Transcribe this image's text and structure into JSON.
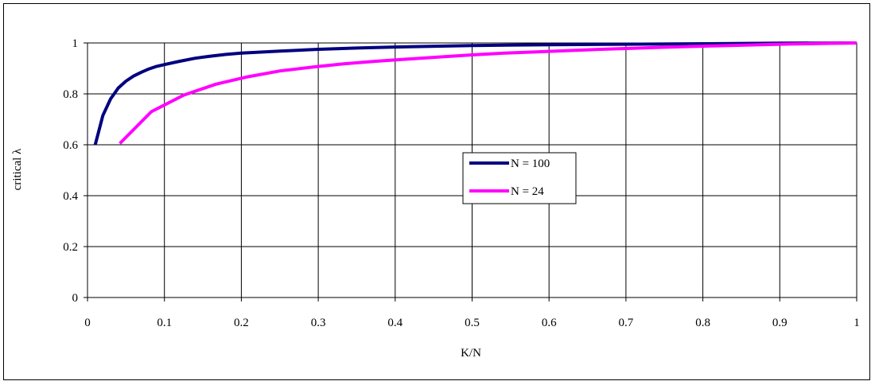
{
  "chart_data": {
    "type": "line",
    "xlabel": "K/N",
    "ylabel": "critical λ",
    "xlim": [
      0,
      1
    ],
    "ylim": [
      0,
      1
    ],
    "x_ticks": [
      "0",
      "0.1",
      "0.2",
      "0.3",
      "0.4",
      "0.5",
      "0.6",
      "0.7",
      "0.8",
      "0.9",
      "1"
    ],
    "y_ticks": [
      "0",
      "0.2",
      "0.4",
      "0.6",
      "0.8",
      "1"
    ],
    "grid": true,
    "legend_position": "center",
    "series": [
      {
        "name": "N = 100",
        "color": "#000080",
        "x": [
          0.01,
          0.02,
          0.03,
          0.04,
          0.05,
          0.06,
          0.07,
          0.08,
          0.09,
          0.1,
          0.12,
          0.14,
          0.16,
          0.18,
          0.2,
          0.25,
          0.3,
          0.35,
          0.4,
          0.5,
          0.6,
          0.7,
          0.8,
          0.9,
          1.0
        ],
        "y": [
          0.6,
          0.715,
          0.78,
          0.823,
          0.85,
          0.87,
          0.885,
          0.898,
          0.908,
          0.915,
          0.928,
          0.94,
          0.948,
          0.955,
          0.96,
          0.968,
          0.975,
          0.98,
          0.984,
          0.99,
          0.993,
          0.995,
          0.997,
          0.999,
          1.0
        ]
      },
      {
        "name": "N = 24",
        "color": "#ff00ff",
        "x": [
          0.042,
          0.083,
          0.125,
          0.167,
          0.208,
          0.25,
          0.292,
          0.333,
          0.375,
          0.417,
          0.458,
          0.5,
          0.542,
          0.583,
          0.625,
          0.667,
          0.708,
          0.75,
          0.792,
          0.833,
          0.875,
          0.917,
          0.958,
          1.0
        ],
        "y": [
          0.605,
          0.73,
          0.795,
          0.838,
          0.867,
          0.89,
          0.905,
          0.918,
          0.928,
          0.937,
          0.945,
          0.953,
          0.96,
          0.965,
          0.97,
          0.975,
          0.979,
          0.983,
          0.987,
          0.99,
          0.993,
          0.996,
          0.998,
          1.0
        ]
      }
    ]
  }
}
